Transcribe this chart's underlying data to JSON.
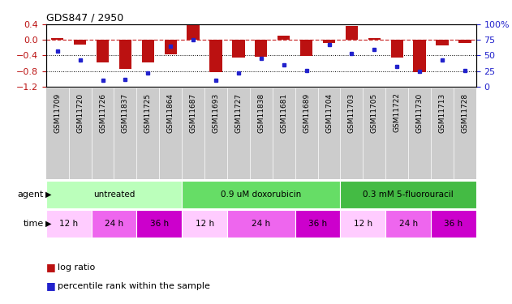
{
  "title": "GDS847 / 2950",
  "samples": [
    "GSM11709",
    "GSM11720",
    "GSM11726",
    "GSM11837",
    "GSM11725",
    "GSM11864",
    "GSM11687",
    "GSM11693",
    "GSM11727",
    "GSM11838",
    "GSM11681",
    "GSM11689",
    "GSM11704",
    "GSM11703",
    "GSM11705",
    "GSM11722",
    "GSM11730",
    "GSM11713",
    "GSM11728"
  ],
  "log_ratio": [
    0.05,
    -0.12,
    -0.58,
    -0.75,
    -0.58,
    -0.37,
    0.37,
    -0.83,
    -0.45,
    -0.44,
    0.1,
    -0.42,
    -0.07,
    0.35,
    0.05,
    -0.45,
    -0.83,
    -0.15,
    -0.08
  ],
  "percentile": [
    57,
    43,
    10,
    12,
    22,
    65,
    75,
    10,
    22,
    45,
    35,
    26,
    67,
    53,
    60,
    33,
    25,
    43,
    26
  ],
  "bar_color": "#bb1111",
  "dot_color": "#2222cc",
  "dashed_line_color": "#cc3333",
  "dotted_line_color": "#000000",
  "ylim_left": [
    -1.2,
    0.4
  ],
  "ylim_right": [
    0,
    100
  ],
  "yticks_left": [
    -1.2,
    -0.8,
    -0.4,
    0.0,
    0.4
  ],
  "yticks_right": [
    0,
    25,
    50,
    75,
    100
  ],
  "ylabel_right_labels": [
    "0",
    "25",
    "50",
    "75",
    "100%"
  ],
  "agent_groups": [
    {
      "label": "untreated",
      "color": "#bbffbb",
      "start": 0,
      "end": 6
    },
    {
      "label": "0.9 uM doxorubicin",
      "color": "#66dd66",
      "start": 6,
      "end": 13
    },
    {
      "label": "0.3 mM 5-fluorouracil",
      "color": "#44bb44",
      "start": 13,
      "end": 19
    }
  ],
  "time_groups": [
    {
      "label": "12 h",
      "color": "#ffccff",
      "start": 0,
      "end": 2
    },
    {
      "label": "24 h",
      "color": "#ee66ee",
      "start": 2,
      "end": 4
    },
    {
      "label": "36 h",
      "color": "#cc00cc",
      "start": 4,
      "end": 6
    },
    {
      "label": "12 h",
      "color": "#ffccff",
      "start": 6,
      "end": 8
    },
    {
      "label": "24 h",
      "color": "#ee66ee",
      "start": 8,
      "end": 11
    },
    {
      "label": "36 h",
      "color": "#cc00cc",
      "start": 11,
      "end": 13
    },
    {
      "label": "12 h",
      "color": "#ffccff",
      "start": 13,
      "end": 15
    },
    {
      "label": "24 h",
      "color": "#ee66ee",
      "start": 15,
      "end": 17
    },
    {
      "label": "36 h",
      "color": "#cc00cc",
      "start": 17,
      "end": 19
    }
  ],
  "sample_bg_color": "#cccccc",
  "agent_label": "agent",
  "time_label": "time",
  "legend_bar_label": "log ratio",
  "legend_dot_label": "percentile rank within the sample",
  "plot_bg": "#ffffff",
  "fig_bg": "#ffffff"
}
